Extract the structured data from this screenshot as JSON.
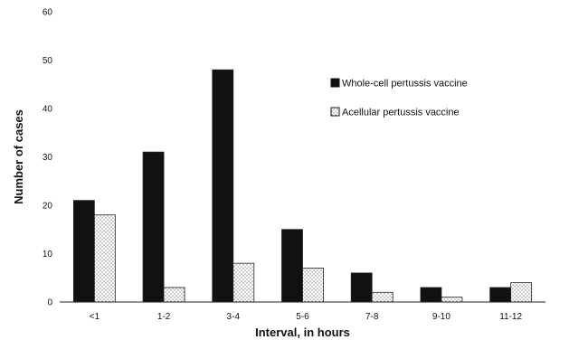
{
  "chart_data": {
    "type": "bar",
    "title": "",
    "xlabel": "Interval, in hours",
    "ylabel": "Number of cases",
    "categories": [
      "<1",
      "1-2",
      "3-4",
      "5-6",
      "7-8",
      "9-10",
      "11-12"
    ],
    "series": [
      {
        "name": "Whole-cell pertussis vaccine",
        "values": [
          21,
          31,
          48,
          15,
          6,
          3,
          3
        ],
        "color": "#111111"
      },
      {
        "name": "Acellular pertussis vaccine",
        "values": [
          18,
          3,
          8,
          7,
          2,
          1,
          4
        ],
        "color": "#ffffff",
        "pattern": "dotted"
      }
    ],
    "ylim": [
      0,
      60
    ],
    "yticks": [
      0,
      10,
      20,
      30,
      40,
      50,
      60
    ],
    "grid": false,
    "legend_position": "top-right"
  }
}
